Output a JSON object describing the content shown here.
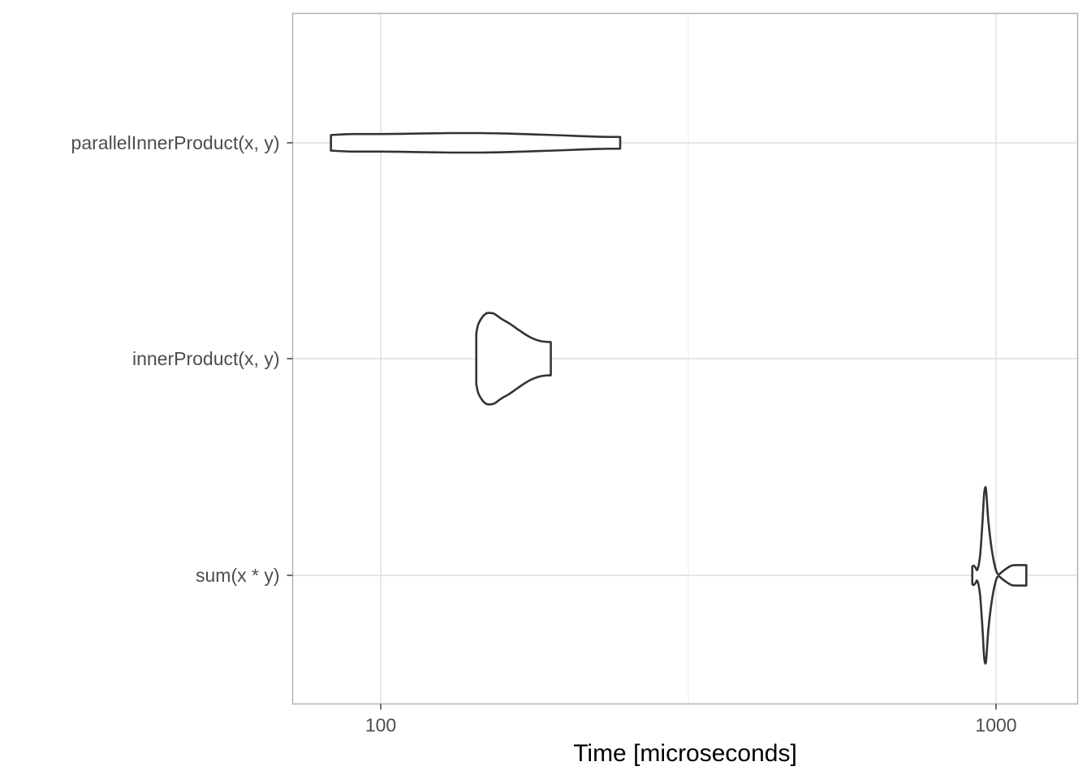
{
  "chart_data": {
    "type": "violin",
    "orientation": "horizontal",
    "title": "",
    "xlabel": "Time [microseconds]",
    "ylabel": "",
    "x_scale": "log10",
    "xlim": [
      80,
      1200
    ],
    "x_ticks": [
      {
        "value": 100,
        "label": "100"
      },
      {
        "value": 1000,
        "label": "1000"
      }
    ],
    "categories": [
      "parallelInnerProduct(x, y)",
      "innerProduct(x, y)",
      "sum(x * y)"
    ],
    "grid": true,
    "legend": "none",
    "colors": {
      "outline": "#333333",
      "fill": "#ffffff",
      "grid_major": "#dedede",
      "grid_minor": "#ebebeb",
      "panel_border": "#b3b3b3",
      "tick_label": "#4d4d4d",
      "axis_title": "#000000"
    },
    "series": [
      {
        "category": "parallelInnerProduct(x, y)",
        "min": 83,
        "max": 245,
        "density": [
          [
            83,
            0.08
          ],
          [
            90,
            0.09
          ],
          [
            100,
            0.09
          ],
          [
            115,
            0.095
          ],
          [
            130,
            0.1
          ],
          [
            145,
            0.1
          ],
          [
            160,
            0.095
          ],
          [
            180,
            0.085
          ],
          [
            200,
            0.075
          ],
          [
            225,
            0.063
          ],
          [
            245,
            0.06
          ]
        ]
      },
      {
        "category": "innerProduct(x, y)",
        "min": 143,
        "max": 189,
        "density": [
          [
            143,
            0.26
          ],
          [
            144,
            0.35
          ],
          [
            146,
            0.42
          ],
          [
            148,
            0.46
          ],
          [
            150,
            0.47
          ],
          [
            153,
            0.46
          ],
          [
            157,
            0.41
          ],
          [
            162,
            0.36
          ],
          [
            168,
            0.29
          ],
          [
            175,
            0.22
          ],
          [
            182,
            0.18
          ],
          [
            189,
            0.17
          ]
        ]
      },
      {
        "category": "sum(x * y)",
        "min": 915,
        "max": 1120,
        "density": [
          [
            915,
            0.09
          ],
          [
            920,
            0.1
          ],
          [
            926,
            0.08
          ],
          [
            933,
            0.06
          ],
          [
            942,
            0.2
          ],
          [
            950,
            0.52
          ],
          [
            956,
            0.82
          ],
          [
            960,
            0.9
          ],
          [
            964,
            0.86
          ],
          [
            972,
            0.55
          ],
          [
            985,
            0.25
          ],
          [
            1000,
            0.05
          ],
          [
            1010,
            0.01
          ],
          [
            1020,
            0.03
          ],
          [
            1040,
            0.07
          ],
          [
            1060,
            0.1
          ],
          [
            1080,
            0.105
          ],
          [
            1100,
            0.105
          ],
          [
            1120,
            0.105
          ]
        ]
      }
    ]
  }
}
